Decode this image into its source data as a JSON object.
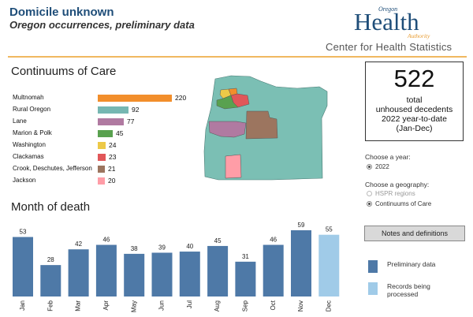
{
  "header": {
    "title": "Domicile unknown",
    "subtitle": "Oregon occurrences, preliminary data",
    "logo": {
      "top": "Oregon",
      "main": "Health",
      "bottom": "Authority"
    },
    "center_name": "Center for Health Statistics"
  },
  "coc": {
    "title": "Continuums of Care",
    "items": [
      {
        "label": "Multnomah",
        "value": 220,
        "color": "#f28e2b"
      },
      {
        "label": "Rural Oregon",
        "value": 92,
        "color": "#76b7b2"
      },
      {
        "label": "Lane",
        "value": 77,
        "color": "#b07aa1"
      },
      {
        "label": "Marion & Polk",
        "value": 45,
        "color": "#59a14f"
      },
      {
        "label": "Washington",
        "value": 24,
        "color": "#edc948"
      },
      {
        "label": "Clackamas",
        "value": 23,
        "color": "#e15759"
      },
      {
        "label": "Crook, Deschutes, Jefferson",
        "value": 21,
        "color": "#9c755f"
      },
      {
        "label": "Jackson",
        "value": 20,
        "color": "#ff9da7"
      }
    ]
  },
  "total": {
    "number": "522",
    "line1": "total",
    "line2": "unhoused decedents",
    "line3": "2022 year-to-date",
    "line4": "(Jan-Dec)"
  },
  "filters": {
    "year_label": "Choose a year:",
    "year_options": [
      {
        "label": "2022",
        "selected": true
      }
    ],
    "geo_label": "Choose a geography:",
    "geo_options": [
      {
        "label": "HSPR regions",
        "selected": false
      },
      {
        "label": "Continuums of Care",
        "selected": true
      }
    ]
  },
  "notes_button": "Notes and definitions",
  "legend": {
    "items": [
      {
        "label": "Preliminary data",
        "color": "#4e79a7"
      },
      {
        "label": "Records being processed",
        "color": "#a0cbe8"
      }
    ]
  },
  "month": {
    "title": "Month of death"
  },
  "chart_data": {
    "type": "bar",
    "title": "Month of death",
    "categories": [
      "Jan",
      "Feb",
      "Mar",
      "Apr",
      "May",
      "Jun",
      "Jul",
      "Aug",
      "Sep",
      "Oct",
      "Nov",
      "Dec"
    ],
    "values": [
      53,
      28,
      42,
      46,
      38,
      39,
      40,
      45,
      31,
      46,
      59,
      55
    ],
    "colors": [
      "#4e79a7",
      "#4e79a7",
      "#4e79a7",
      "#4e79a7",
      "#4e79a7",
      "#4e79a7",
      "#4e79a7",
      "#4e79a7",
      "#4e79a7",
      "#4e79a7",
      "#4e79a7",
      "#a0cbe8"
    ],
    "ylim": [
      0,
      59
    ],
    "grid": false
  }
}
